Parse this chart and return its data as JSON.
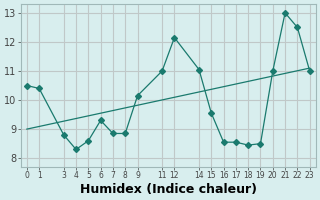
{
  "x": [
    0,
    1,
    3,
    4,
    5,
    6,
    7,
    8,
    9,
    11,
    12,
    14,
    15,
    16,
    17,
    18,
    19,
    20,
    21,
    22,
    23
  ],
  "y": [
    10.5,
    10.4,
    8.8,
    8.3,
    8.6,
    9.3,
    8.85,
    8.85,
    10.15,
    11.0,
    12.15,
    11.05,
    9.55,
    8.55,
    8.55,
    8.45,
    8.5,
    11.0,
    13.0,
    12.5,
    11.0
  ],
  "line_color": "#1a7a6e",
  "marker": "D",
  "markersize": 3,
  "bg_color": "#d8eeee",
  "grid_color": "#c0c8c8",
  "xlabel": "Humidex (Indice chaleur)",
  "xlabel_fontsize": 9,
  "xticks": [
    0,
    1,
    3,
    4,
    5,
    6,
    7,
    8,
    9,
    11,
    12,
    14,
    15,
    16,
    17,
    18,
    19,
    20,
    21,
    22,
    23
  ],
  "yticks": [
    8,
    9,
    10,
    11,
    12,
    13
  ],
  "ylim": [
    7.7,
    13.3
  ],
  "xlim": [
    -0.5,
    23.5
  ],
  "trend_x": [
    0,
    23
  ],
  "trend_y_start": 9.0,
  "trend_y_end": 11.1
}
